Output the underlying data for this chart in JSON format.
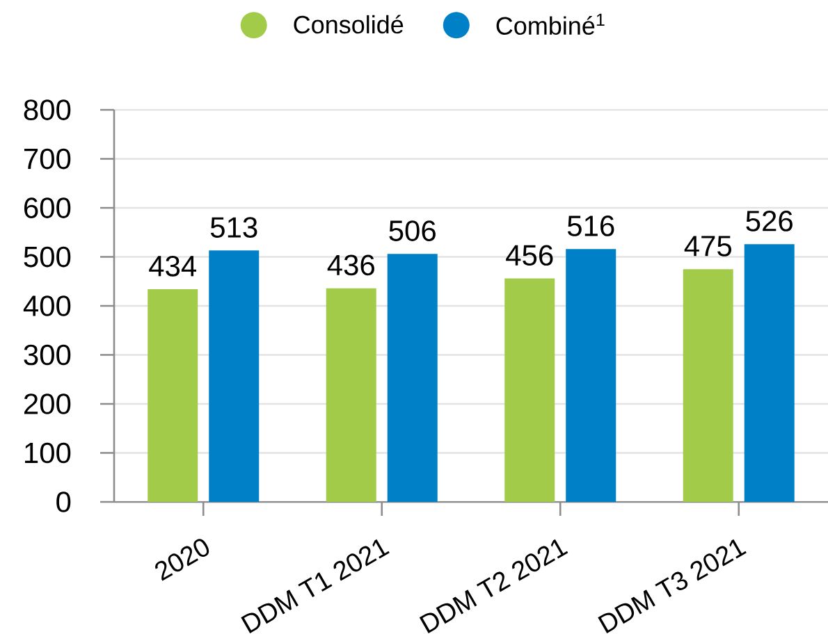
{
  "chart_data": {
    "type": "bar",
    "categories": [
      "2020",
      "DDM T1 2021",
      "DDM T2 2021",
      "DDM T3 2021"
    ],
    "series": [
      {
        "name": "Consolidé",
        "color": "#a2cb4a",
        "values": [
          434,
          436,
          456,
          475
        ]
      },
      {
        "name": "Combiné$^{1}$",
        "color": "#0080c6",
        "values": [
          513,
          506,
          516,
          526
        ]
      }
    ],
    "ylim": [
      0,
      800
    ],
    "yticks": [
      0,
      100,
      200,
      300,
      400,
      500,
      600,
      700,
      800
    ],
    "grid": "y",
    "legend": "top",
    "data_labels": true
  }
}
